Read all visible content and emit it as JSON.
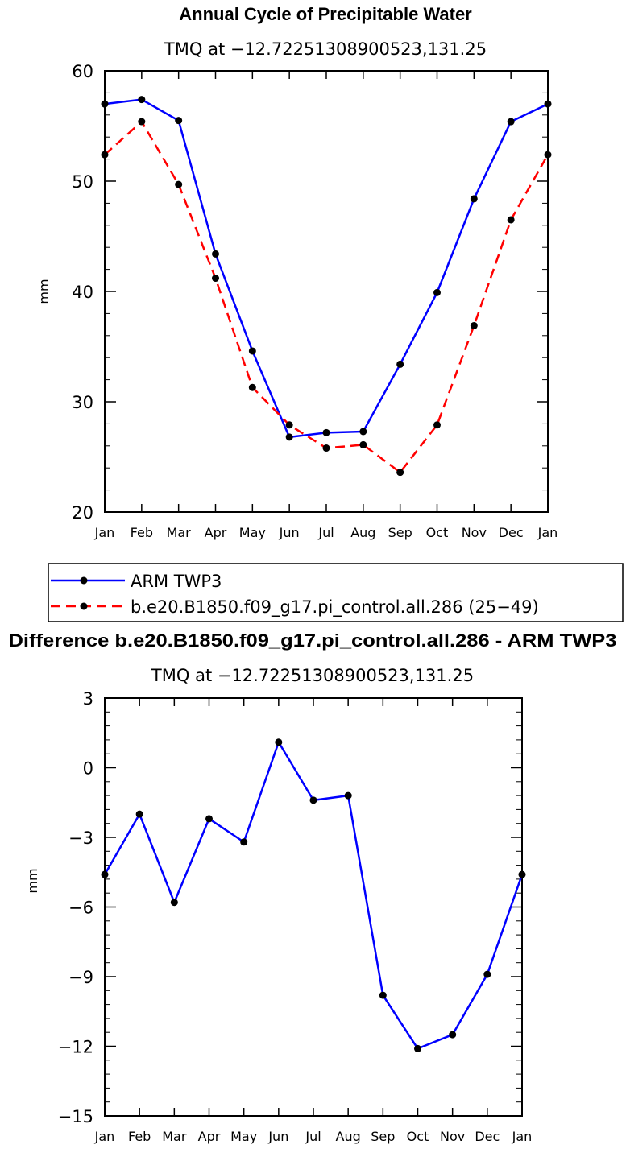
{
  "chart_data": [
    {
      "type": "line",
      "title": "Annual Cycle of Precipitable Water",
      "subtitle": "TMQ at −12.72251308900523,131.25",
      "xlabel": "",
      "ylabel": "mm",
      "ylim": [
        20,
        60
      ],
      "yticks": [
        "20",
        "30",
        "40",
        "50",
        "60"
      ],
      "categories": [
        "Jan",
        "Feb",
        "Mar",
        "Apr",
        "May",
        "Jun",
        "Jul",
        "Aug",
        "Sep",
        "Oct",
        "Nov",
        "Dec",
        "Jan"
      ],
      "series": [
        {
          "name": "ARM TWP3",
          "color": "#0000ff",
          "dash": "solid",
          "values": [
            57.0,
            57.4,
            55.5,
            43.4,
            34.6,
            26.8,
            27.2,
            27.3,
            33.4,
            39.9,
            48.4,
            55.4,
            57.0
          ]
        },
        {
          "name": "b.e20.B1850.f09_g17.pi_control.all.286 (25−49)",
          "color": "#ff0000",
          "dash": "dashed",
          "values": [
            52.4,
            55.4,
            49.7,
            41.2,
            31.3,
            27.9,
            25.8,
            26.1,
            23.6,
            27.9,
            36.9,
            46.5,
            52.4
          ]
        }
      ],
      "legend": [
        "ARM TWP3",
        "b.e20.B1850.f09_g17.pi_control.all.286 (25−49)"
      ]
    },
    {
      "type": "line",
      "title": "Difference b.e20.B1850.f09_g17.pi_control.all.286 - ARM TWP3",
      "subtitle": "TMQ at −12.72251308900523,131.25",
      "xlabel": "",
      "ylabel": "mm",
      "ylim": [
        -15,
        3
      ],
      "yticks": [
        "−15",
        "−12",
        "−9",
        "−6",
        "−3",
        "0",
        "3"
      ],
      "categories": [
        "Jan",
        "Feb",
        "Mar",
        "Apr",
        "May",
        "Jun",
        "Jul",
        "Aug",
        "Sep",
        "Oct",
        "Nov",
        "Dec",
        "Jan"
      ],
      "series": [
        {
          "name": "Difference",
          "color": "#0000ff",
          "dash": "solid",
          "values": [
            -4.6,
            -2.0,
            -5.8,
            -2.2,
            -3.2,
            1.1,
            -1.4,
            -1.2,
            -9.8,
            -12.1,
            -11.5,
            -8.9,
            -4.6
          ]
        }
      ]
    }
  ]
}
